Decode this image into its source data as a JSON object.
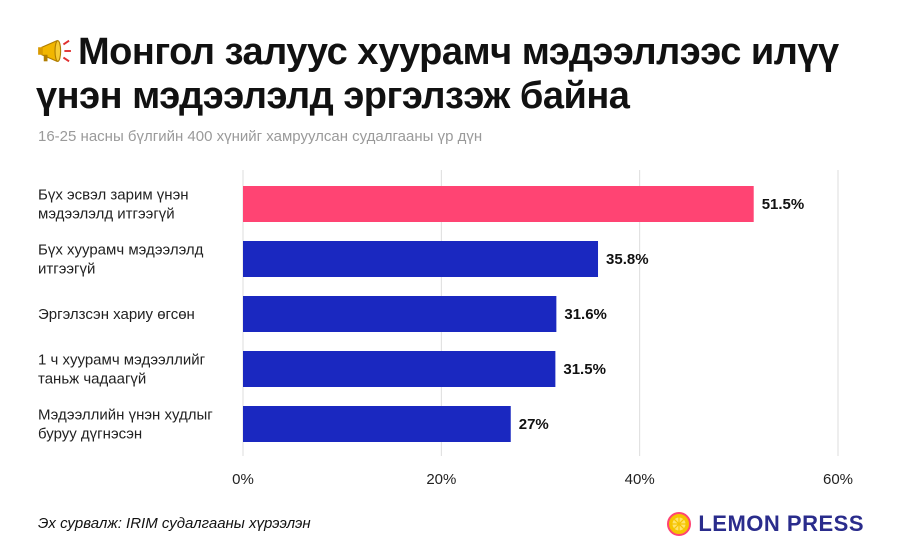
{
  "header": {
    "title_line1": "Монгол залуус хуурамч мэдээллээс илүү",
    "title_line2": "үнэн мэдээлэлд эргэлзэж байна",
    "title_icon": "megaphone-icon",
    "subtitle": "16-25 насны бүлгийн 400 хүнийг хамруулсан судалгааны үр дүн"
  },
  "chart_data": {
    "type": "bar",
    "orientation": "horizontal",
    "categories": [
      [
        "Бүх эсвэл зарим үнэн",
        "мэдээлэлд итгээгүй"
      ],
      [
        "Бүх хуурамч мэдээлэлд",
        "итгээгүй"
      ],
      [
        "Эргэлзсэн хариу өгсөн"
      ],
      [
        "1 ч хуурамч мэдээллийг",
        "таньж чадаагүй"
      ],
      [
        "Мэдээллийн үнэн худлыг",
        "буруу дүгнэсэн"
      ]
    ],
    "values": [
      51.5,
      35.8,
      31.6,
      31.5,
      27
    ],
    "value_labels": [
      "51.5%",
      "35.8%",
      "31.6%",
      "31.5%",
      "27%"
    ],
    "bar_colors": [
      "#ff4473",
      "#1a28c0",
      "#1a28c0",
      "#1a28c0",
      "#1a28c0"
    ],
    "xlim": [
      0,
      60
    ],
    "xticks": [
      0,
      20,
      40,
      60
    ],
    "xtick_labels": [
      "0%",
      "20%",
      "40%",
      "60%"
    ],
    "grid": true
  },
  "footer": {
    "source": "Эх сурвалж: IRIM судалгааны хүрээлэн",
    "logo_text": "LEMON PRESS",
    "logo_icon": "lemon-icon"
  },
  "colors": {
    "highlight": "#ff4473",
    "primary": "#1a28c0",
    "logo": "#2a2c8c",
    "lemon": "#f5c400"
  }
}
